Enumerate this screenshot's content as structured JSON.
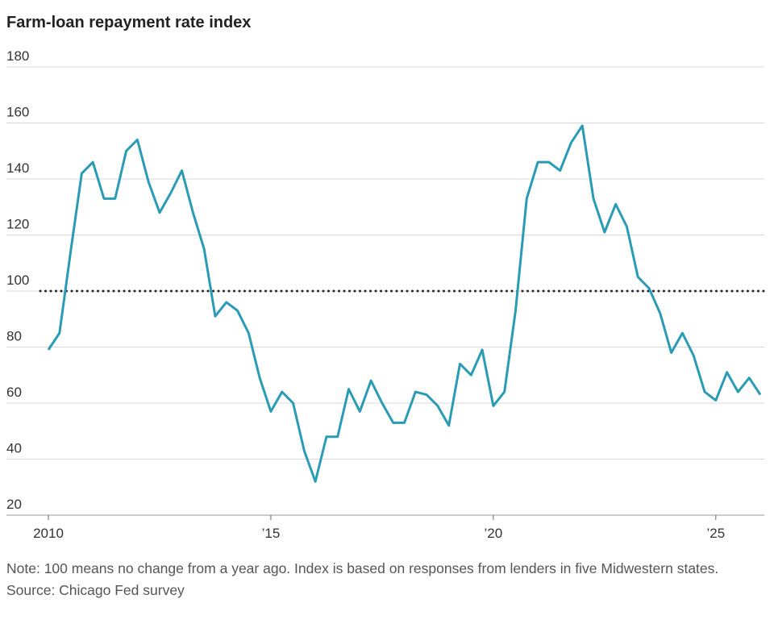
{
  "chart_data": {
    "type": "line",
    "title": "Farm-loan repayment rate index",
    "x": [
      2010,
      2010.25,
      2010.5,
      2010.75,
      2011,
      2011.25,
      2011.5,
      2011.75,
      2012,
      2012.25,
      2012.5,
      2012.75,
      2013,
      2013.25,
      2013.5,
      2013.75,
      2014,
      2014.25,
      2014.5,
      2014.75,
      2015,
      2015.25,
      2015.5,
      2015.75,
      2016,
      2016.25,
      2016.5,
      2016.75,
      2017,
      2017.25,
      2017.5,
      2017.75,
      2018,
      2018.25,
      2018.5,
      2018.75,
      2019,
      2019.25,
      2019.5,
      2019.75,
      2020,
      2020.25,
      2020.5,
      2020.75,
      2021,
      2021.25,
      2021.5,
      2021.75,
      2022,
      2022.25,
      2022.5,
      2022.75,
      2023,
      2023.25,
      2023.5,
      2023.75,
      2024,
      2024.25,
      2024.5,
      2024.75,
      2025,
      2025.25,
      2025.5,
      2025.75,
      2026
    ],
    "series": [
      {
        "color": "#2a9bb5",
        "values": [
          79,
          85,
          114,
          142,
          146,
          133,
          133,
          150,
          154,
          139,
          128,
          135,
          143,
          128,
          115,
          91,
          96,
          93,
          85,
          69,
          57,
          64,
          60,
          43,
          32,
          48,
          48,
          65,
          57,
          68,
          60,
          53,
          53,
          64,
          63,
          59,
          52,
          74,
          70,
          79,
          59,
          64,
          93,
          133,
          146,
          146,
          143,
          153,
          159,
          133,
          121,
          131,
          123,
          105,
          101,
          92,
          78,
          85,
          77,
          64,
          61,
          71,
          64,
          69,
          63
        ]
      }
    ],
    "reference_line": 100,
    "xlim": [
      2010,
      2026
    ],
    "xticks": [
      {
        "value": 2010,
        "label": "2010"
      },
      {
        "value": 2015,
        "label": "’15"
      },
      {
        "value": 2020,
        "label": "’20"
      },
      {
        "value": 2025,
        "label": "’25"
      }
    ],
    "ylim": [
      20,
      180
    ],
    "yticks": [
      20,
      40,
      60,
      80,
      100,
      120,
      140,
      160,
      180
    ],
    "grid": true,
    "note": "Note: 100 means no change from a year ago. Index is based on responses from lenders in five Midwestern states.",
    "source": "Source: Chicago Fed survey"
  }
}
